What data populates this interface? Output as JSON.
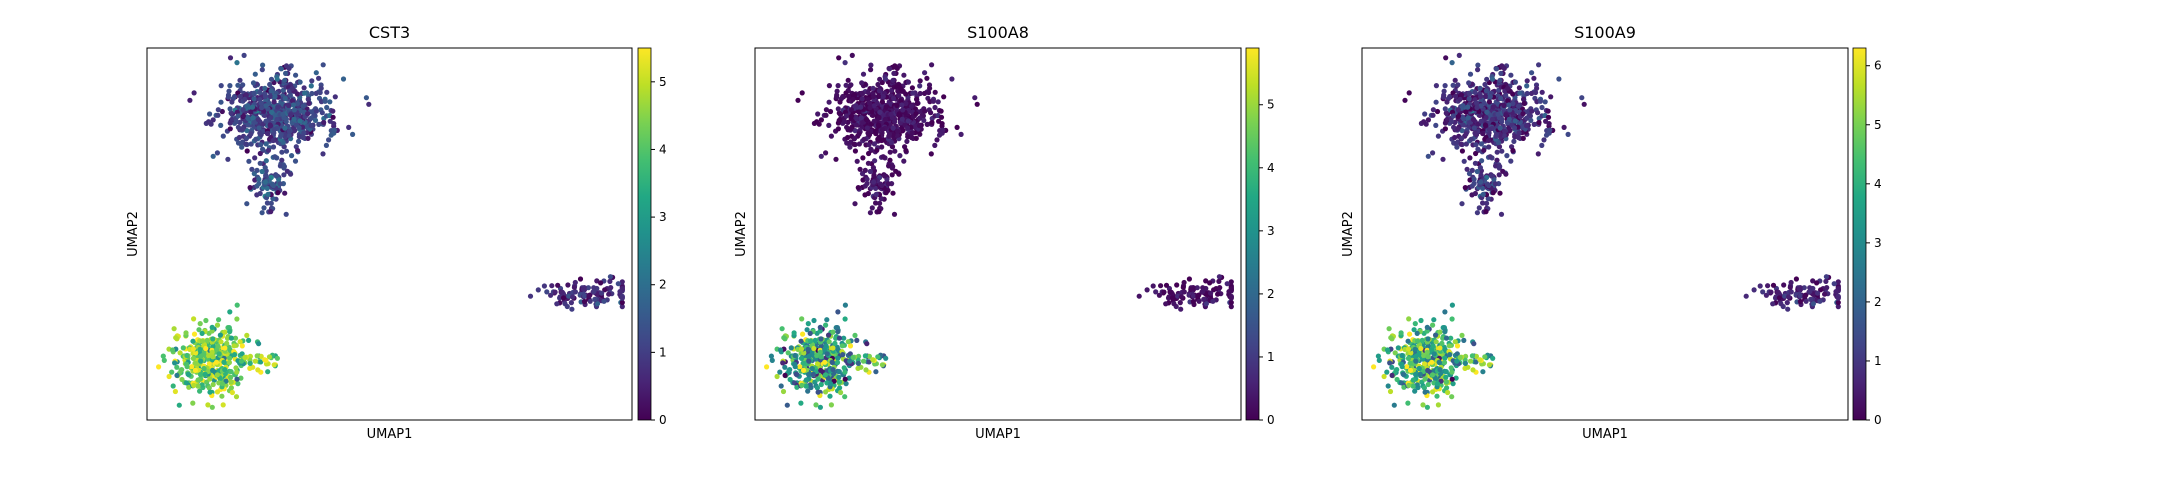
{
  "chart_data": [
    {
      "type": "scatter",
      "title": "CST3",
      "xlabel": "UMAP1",
      "ylabel": "UMAP2",
      "colormap": "viridis",
      "colorbar": {
        "min": 0,
        "max": 5.5,
        "ticks": [
          "0",
          "1",
          "2",
          "3",
          "4",
          "5"
        ]
      },
      "clusters": [
        {
          "name": "upper",
          "center": [
            0.27,
            0.82
          ],
          "count": 650,
          "expression_mean": 1.1,
          "expression_spread": 0.5
        },
        {
          "name": "upper-stem",
          "center": [
            0.25,
            0.63
          ],
          "count": 90,
          "expression_mean": 1.2,
          "expression_spread": 0.5
        },
        {
          "name": "right",
          "center": [
            0.91,
            0.34
          ],
          "count": 120,
          "expression_mean": 0.7,
          "expression_spread": 0.4
        },
        {
          "name": "lower-left",
          "center": [
            0.13,
            0.16
          ],
          "count": 420,
          "expression_mean": 4.3,
          "expression_spread": 0.8
        }
      ]
    },
    {
      "type": "scatter",
      "title": "S100A8",
      "xlabel": "UMAP1",
      "ylabel": "UMAP2",
      "colormap": "viridis",
      "colorbar": {
        "min": 0,
        "max": 5.9,
        "ticks": [
          "0",
          "1",
          "2",
          "3",
          "4",
          "5"
        ]
      },
      "clusters": [
        {
          "name": "upper",
          "center": [
            0.27,
            0.82
          ],
          "count": 650,
          "expression_mean": 0.2,
          "expression_spread": 0.3
        },
        {
          "name": "upper-stem",
          "center": [
            0.25,
            0.63
          ],
          "count": 90,
          "expression_mean": 0.2,
          "expression_spread": 0.3
        },
        {
          "name": "right",
          "center": [
            0.91,
            0.34
          ],
          "count": 120,
          "expression_mean": 0.2,
          "expression_spread": 0.3
        },
        {
          "name": "lower-left",
          "center": [
            0.13,
            0.16
          ],
          "count": 420,
          "expression_mean": 3.3,
          "expression_spread": 1.4
        }
      ]
    },
    {
      "type": "scatter",
      "title": "S100A9",
      "xlabel": "UMAP1",
      "ylabel": "UMAP2",
      "colormap": "viridis",
      "colorbar": {
        "min": 0,
        "max": 6.3,
        "ticks": [
          "0",
          "1",
          "2",
          "3",
          "4",
          "5",
          "6"
        ]
      },
      "clusters": [
        {
          "name": "upper",
          "center": [
            0.27,
            0.82
          ],
          "count": 650,
          "expression_mean": 0.8,
          "expression_spread": 0.6
        },
        {
          "name": "upper-stem",
          "center": [
            0.25,
            0.63
          ],
          "count": 90,
          "expression_mean": 0.8,
          "expression_spread": 0.6
        },
        {
          "name": "right",
          "center": [
            0.91,
            0.34
          ],
          "count": 120,
          "expression_mean": 0.6,
          "expression_spread": 0.4
        },
        {
          "name": "lower-left",
          "center": [
            0.13,
            0.16
          ],
          "count": 420,
          "expression_mean": 4.1,
          "expression_spread": 1.3
        }
      ]
    }
  ]
}
